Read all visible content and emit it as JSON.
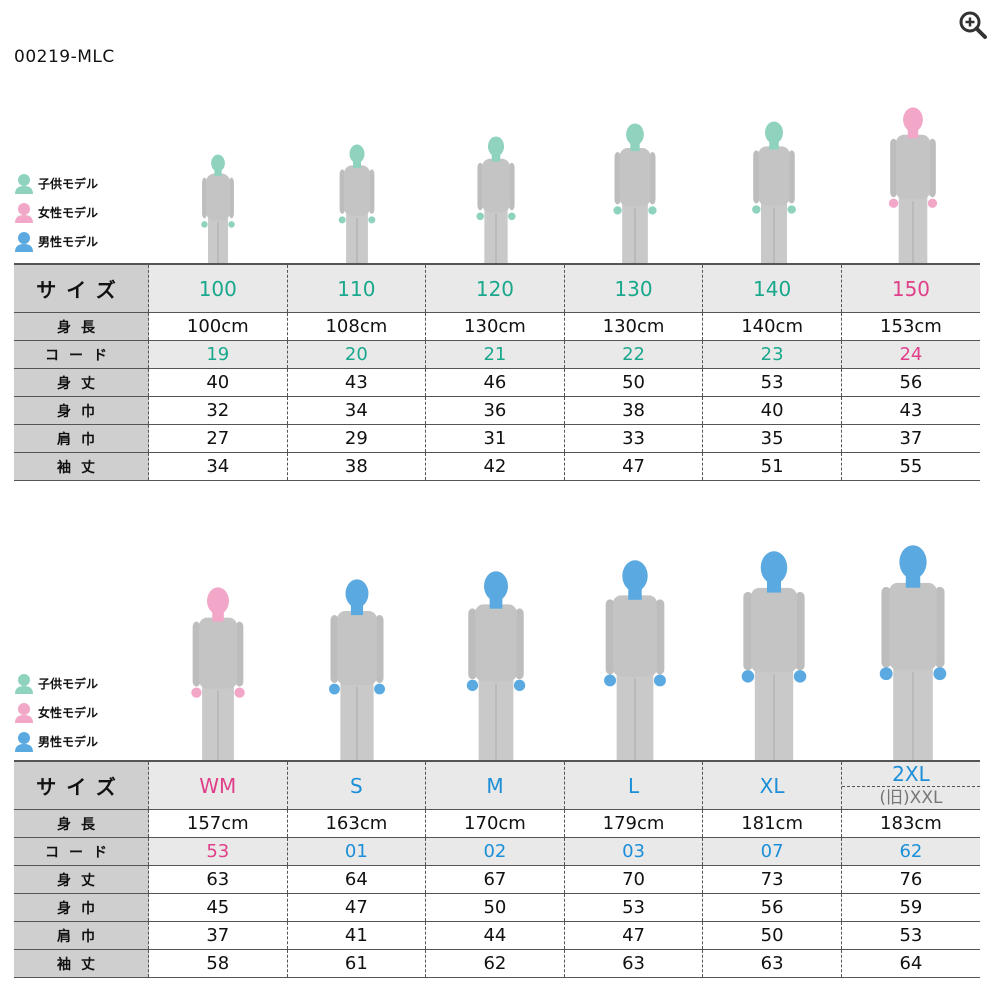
{
  "product_code": "00219-MLC",
  "zoom_icon": "zoom-in-icon",
  "legend": [
    {
      "label": "子供モデル",
      "color": "#8fd3bf"
    },
    {
      "label": "女性モデル",
      "color": "#f2a6c8"
    },
    {
      "label": "男性モデル",
      "color": "#5aa9e0"
    }
  ],
  "row_labels": {
    "size": "サイズ",
    "height": "身長",
    "code": "コード",
    "length": "身丈",
    "width": "身巾",
    "shoulder": "肩巾",
    "sleeve": "袖丈"
  },
  "kids": {
    "models": [
      "child",
      "child",
      "child",
      "child",
      "child",
      "female"
    ],
    "sizes": [
      "100",
      "110",
      "120",
      "130",
      "140",
      "150"
    ],
    "heights": [
      "100cm",
      "108cm",
      "130cm",
      "130cm",
      "140cm",
      "153cm"
    ],
    "codes": [
      "19",
      "20",
      "21",
      "22",
      "23",
      "24"
    ],
    "length": [
      "40",
      "43",
      "46",
      "50",
      "53",
      "56"
    ],
    "width": [
      "32",
      "34",
      "36",
      "38",
      "40",
      "43"
    ],
    "shoulder": [
      "27",
      "29",
      "31",
      "33",
      "35",
      "37"
    ],
    "sleeve": [
      "34",
      "38",
      "42",
      "47",
      "51",
      "55"
    ]
  },
  "adults": {
    "models": [
      "female",
      "male",
      "male",
      "male",
      "male",
      "male"
    ],
    "sizes": [
      "WM",
      "S",
      "M",
      "L",
      "XL",
      "2XL"
    ],
    "size_old": "(旧)XXL",
    "heights": [
      "157cm",
      "163cm",
      "170cm",
      "179cm",
      "181cm",
      "183cm"
    ],
    "codes": [
      "53",
      "01",
      "02",
      "03",
      "07",
      "62"
    ],
    "length": [
      "63",
      "64",
      "67",
      "70",
      "73",
      "76"
    ],
    "width": [
      "45",
      "47",
      "50",
      "53",
      "56",
      "59"
    ],
    "shoulder": [
      "37",
      "41",
      "44",
      "47",
      "50",
      "53"
    ],
    "sleeve": [
      "58",
      "61",
      "62",
      "63",
      "63",
      "64"
    ]
  }
}
